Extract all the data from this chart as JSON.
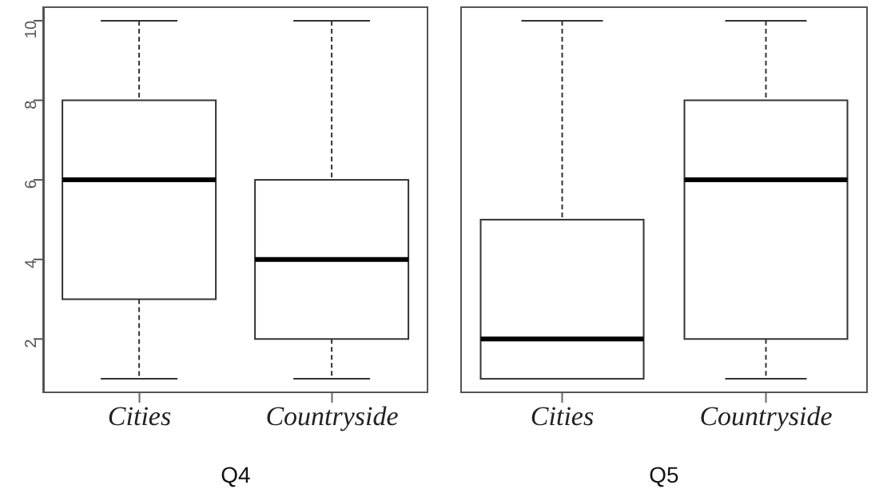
{
  "chart_data": [
    {
      "type": "box",
      "xlabel": "Q4",
      "categories": [
        "Cities",
        "Countryside"
      ],
      "boxes": [
        {
          "low": 1,
          "q1": 3,
          "median": 6,
          "q3": 8,
          "high": 10
        },
        {
          "low": 1,
          "q1": 2,
          "median": 4,
          "q3": 6,
          "high": 10
        }
      ],
      "ylim": [
        0.64,
        10.36
      ],
      "yticks": [
        2,
        4,
        6,
        8,
        10
      ]
    },
    {
      "type": "box",
      "xlabel": "Q5",
      "categories": [
        "Cities",
        "Countryside"
      ],
      "boxes": [
        {
          "low": 1,
          "q1": 1,
          "median": 2,
          "q3": 5,
          "high": 10
        },
        {
          "low": 1,
          "q1": 2,
          "median": 6,
          "q3": 8,
          "high": 10
        }
      ],
      "ylim": [
        0.64,
        10.36
      ],
      "yticks": [
        2,
        4,
        6,
        8,
        10
      ],
      "tick_labels": "x"
    }
  ]
}
